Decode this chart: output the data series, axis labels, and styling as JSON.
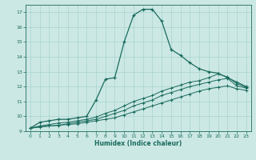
{
  "xlabel": "Humidex (Indice chaleur)",
  "background_color": "#cce8e4",
  "grid_color": "#a8d4cf",
  "line_color": "#1a6b5e",
  "xlim": [
    -0.5,
    23.5
  ],
  "ylim": [
    9,
    17.5
  ],
  "yticks": [
    9,
    10,
    11,
    12,
    13,
    14,
    15,
    16,
    17
  ],
  "xticks": [
    0,
    1,
    2,
    3,
    4,
    5,
    6,
    7,
    8,
    9,
    10,
    11,
    12,
    13,
    14,
    15,
    16,
    17,
    18,
    19,
    20,
    21,
    22,
    23
  ],
  "series1_x": [
    0,
    1,
    2,
    3,
    4,
    5,
    6,
    7,
    8,
    9,
    10,
    11,
    12,
    13,
    14,
    15,
    16,
    17,
    18,
    19,
    20,
    21,
    22,
    23
  ],
  "series1_y": [
    9.2,
    9.6,
    9.7,
    9.8,
    9.8,
    9.9,
    10.0,
    11.1,
    12.5,
    12.6,
    15.0,
    16.8,
    17.2,
    17.2,
    16.4,
    14.5,
    14.1,
    13.6,
    13.2,
    13.0,
    12.9,
    12.6,
    12.3,
    12.0
  ],
  "series2_x": [
    0,
    1,
    2,
    3,
    4,
    5,
    6,
    7,
    8,
    9,
    10,
    11,
    12,
    13,
    14,
    15,
    16,
    17,
    18,
    19,
    20,
    21,
    22,
    23
  ],
  "series2_y": [
    9.2,
    9.3,
    9.35,
    9.4,
    9.5,
    9.6,
    9.7,
    9.8,
    10.0,
    10.2,
    10.4,
    10.7,
    10.9,
    11.1,
    11.4,
    11.6,
    11.8,
    12.0,
    12.15,
    12.3,
    12.45,
    12.55,
    12.05,
    11.9
  ],
  "series3_x": [
    0,
    1,
    2,
    3,
    4,
    5,
    6,
    7,
    8,
    9,
    10,
    11,
    12,
    13,
    14,
    15,
    16,
    17,
    18,
    19,
    20,
    21,
    22,
    23
  ],
  "series3_y": [
    9.2,
    9.35,
    9.45,
    9.55,
    9.6,
    9.7,
    9.8,
    9.95,
    10.2,
    10.4,
    10.7,
    11.0,
    11.2,
    11.4,
    11.7,
    11.9,
    12.1,
    12.3,
    12.4,
    12.6,
    12.85,
    12.65,
    12.2,
    11.95
  ],
  "series4_x": [
    0,
    1,
    2,
    3,
    4,
    5,
    6,
    7,
    8,
    9,
    10,
    11,
    12,
    13,
    14,
    15,
    16,
    17,
    18,
    19,
    20,
    21,
    22,
    23
  ],
  "series4_y": [
    9.2,
    9.28,
    9.35,
    9.4,
    9.45,
    9.5,
    9.6,
    9.7,
    9.8,
    9.9,
    10.1,
    10.3,
    10.5,
    10.7,
    10.9,
    11.1,
    11.3,
    11.5,
    11.7,
    11.85,
    11.95,
    12.05,
    11.85,
    11.75
  ]
}
